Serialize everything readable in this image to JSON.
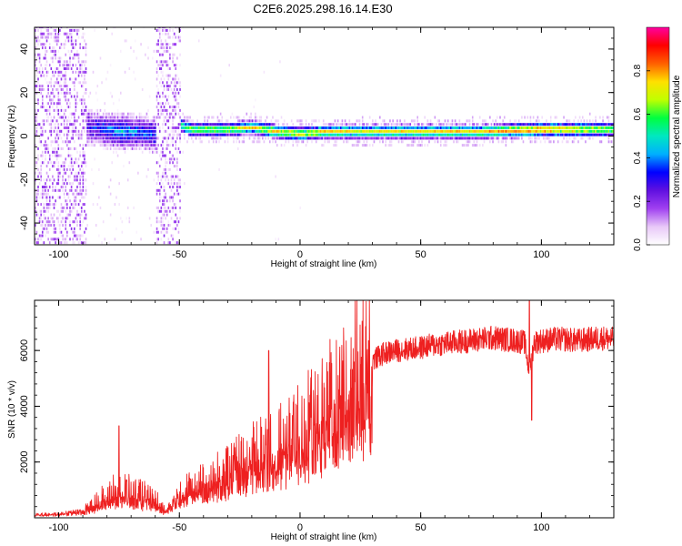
{
  "title": "C2E6.2025.298.16.14.E30",
  "chart_data": [
    {
      "type": "heatmap",
      "title": "C2E6.2025.298.16.14.E30",
      "xlabel": "Height of straight line (km)",
      "ylabel": "Frequency (Hz)",
      "xlim": [
        -110,
        130
      ],
      "ylim": [
        -50,
        50
      ],
      "xticks": [
        -100,
        -50,
        0,
        50,
        100
      ],
      "yticks": [
        -40,
        -20,
        0,
        20,
        40
      ],
      "colorbar": {
        "label": "Normalized spectral amplitude",
        "range": [
          0,
          1
        ],
        "ticks": [
          0.0,
          0.2,
          0.4,
          0.6,
          0.8
        ],
        "colors": [
          "#ffffff",
          "#e8c8f8",
          "#a040f0",
          "#6010e0",
          "#0000ff",
          "#00b0ff",
          "#00e8c0",
          "#00ff40",
          "#c0ff00",
          "#ffe000",
          "#ff6000",
          "#ff0000",
          "#ff00a0"
        ]
      },
      "ridge": {
        "x": [
          -88,
          -75,
          -60,
          -50,
          -45,
          -30,
          -20,
          -10,
          0,
          10,
          25,
          50,
          75,
          100,
          130
        ],
        "freq_hz": [
          3,
          1,
          0,
          4,
          2,
          2,
          3,
          1,
          0,
          1,
          1,
          1,
          1,
          2,
          2
        ],
        "amplitude": [
          0.3,
          0.45,
          0.35,
          0.6,
          0.7,
          0.72,
          0.78,
          0.8,
          0.78,
          0.8,
          0.75,
          0.78,
          0.8,
          0.95,
          0.7
        ]
      },
      "noise_bands_km": [
        [
          -110,
          -89
        ],
        [
          -60,
          -50
        ]
      ]
    },
    {
      "type": "line",
      "xlabel": "Height of straight line (km)",
      "ylabel": "SNR (10 * v/v)",
      "xlim": [
        -110,
        130
      ],
      "ylim": [
        0,
        7800
      ],
      "xticks": [
        -100,
        -50,
        0,
        50,
        100
      ],
      "yticks": [
        2000,
        4000,
        6000
      ],
      "color": "#ee2020",
      "series": [
        {
          "name": "SNR",
          "x": [
            -110,
            -100,
            -90,
            -85,
            -80,
            -75,
            -70,
            -65,
            -60,
            -56,
            -50,
            -45,
            -40,
            -35,
            -30,
            -25,
            -20,
            -15,
            -10,
            -5,
            0,
            5,
            10,
            15,
            20,
            25,
            30,
            35,
            40,
            45,
            50,
            55,
            60,
            65,
            70,
            75,
            80,
            85,
            90,
            93,
            95,
            97,
            100,
            105,
            110,
            115,
            120,
            125,
            130
          ],
          "y": [
            120,
            150,
            250,
            500,
            800,
            1000,
            900,
            800,
            700,
            250,
            900,
            1100,
            1300,
            1500,
            1700,
            2000,
            2200,
            2400,
            2500,
            2900,
            3200,
            3600,
            4000,
            4500,
            4900,
            5300,
            5650,
            5900,
            6000,
            6050,
            6100,
            6200,
            6250,
            6300,
            6350,
            6400,
            6450,
            6400,
            6350,
            6300,
            5200,
            6300,
            6350,
            6400,
            6400,
            6350,
            6400,
            6450,
            6400
          ]
        }
      ],
      "spikes": [
        {
          "x": -75,
          "y": 3300
        },
        {
          "x": -13,
          "y": 6000
        },
        {
          "x": 95,
          "y": 7800
        },
        {
          "x": 96,
          "y": 3500
        }
      ]
    }
  ]
}
